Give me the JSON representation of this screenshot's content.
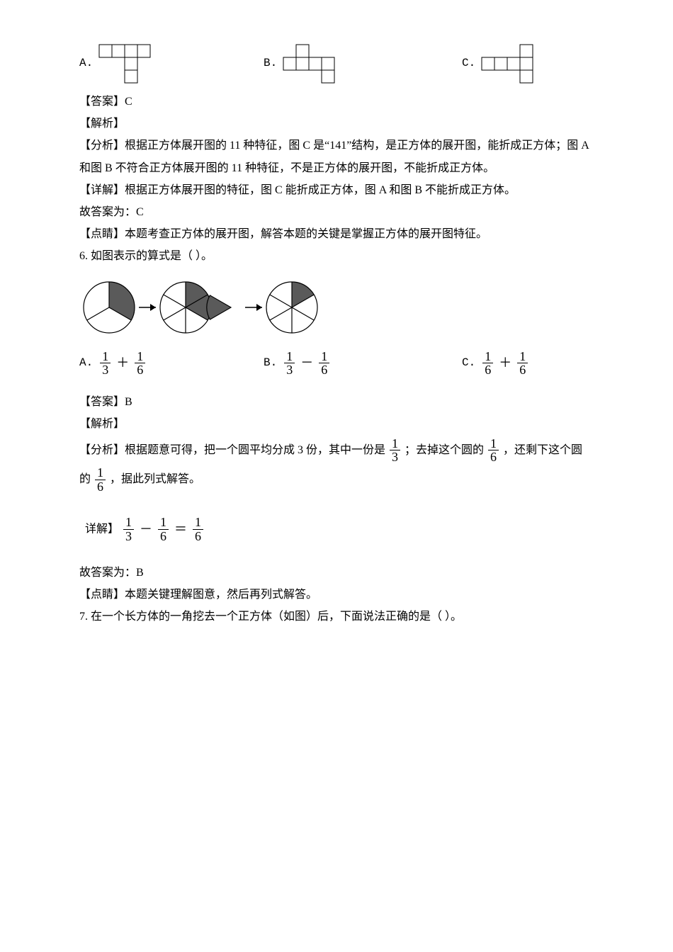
{
  "colors": {
    "text": "#000000",
    "bg": "#ffffff",
    "line": "#000000",
    "shade": "#5a5a5a"
  },
  "nets": {
    "cell": 18,
    "stroke": "#000000",
    "strokeWidth": 1,
    "A": {
      "squares": [
        [
          0,
          0
        ],
        [
          1,
          0
        ],
        [
          2,
          0
        ],
        [
          3,
          0
        ],
        [
          2,
          1
        ],
        [
          2,
          2
        ]
      ]
    },
    "B": {
      "squares": [
        [
          0,
          1
        ],
        [
          1,
          0
        ],
        [
          1,
          1
        ],
        [
          2,
          1
        ],
        [
          3,
          1
        ],
        [
          3,
          2
        ]
      ]
    },
    "C": {
      "squares": [
        [
          3,
          0
        ],
        [
          0,
          1
        ],
        [
          1,
          1
        ],
        [
          2,
          1
        ],
        [
          3,
          1
        ],
        [
          3,
          2
        ]
      ]
    }
  },
  "q5": {
    "optA": "A. ",
    "optB": "B. ",
    "optC": "C. ",
    "ansLabel": "【答案】",
    "ansVal": "C",
    "parseLabel": "【解析】",
    "analysisLabel": "【分析】",
    "analysisText": "根据正方体展开图的 11 种特征，图 C 是“141”结构，是正方体的展开图，能折成正方体；图 A 和图 B 不符合正方体展开图的 11 种特征，不是正方体的展开图，不能折成正方体。",
    "detailLabel": "【详解】",
    "detailText": "根据正方体展开图的特征，图 C 能折成正方体，图 A 和图 B 不能折成正方体。",
    "so": "故答案为：C",
    "dianjingLabel": "【点睛】",
    "dianjingText": "本题考查正方体的展开图，解答本题的关键是掌握正方体的展开图特征。"
  },
  "q6": {
    "stem": "6. 如图表示的算式是（    ）。",
    "circles": {
      "r": 36,
      "stroke": "#000000",
      "strokeWidth": 1.2,
      "shade": "#5a5a5a",
      "c1": {
        "segments": 3,
        "shaded": [
          0
        ]
      },
      "c2": {
        "segments": 6,
        "shaded": [
          0,
          1
        ],
        "highlightRemoved": 1
      },
      "c3": {
        "segments": 6,
        "shaded": [
          0
        ]
      }
    },
    "optA": "A. ",
    "optB": "B. ",
    "optC": "C. ",
    "fracA": {
      "a": {
        "n": "1",
        "d": "3"
      },
      "op": "＋",
      "b": {
        "n": "1",
        "d": "6"
      }
    },
    "fracB": {
      "a": {
        "n": "1",
        "d": "3"
      },
      "op": "－",
      "b": {
        "n": "1",
        "d": "6"
      }
    },
    "fracC": {
      "a": {
        "n": "1",
        "d": "6"
      },
      "op": "＋",
      "b": {
        "n": "1",
        "d": "6"
      }
    },
    "ansLabel": "【答案】",
    "ansVal": "B",
    "parseLabel": "【解析】",
    "analysisLabel": "【分析】",
    "analysisPre": "根据题意可得，把一个圆平均分成 3 份，其中一份是",
    "analysisMid1": "；去掉这个圆的",
    "analysisMid2": "，还剩下这个圆的",
    "analysisFrac1": {
      "n": "1",
      "d": "3"
    },
    "analysisFrac2": {
      "n": "1",
      "d": "6"
    },
    "analysisFrac3": {
      "n": "1",
      "d": "6"
    },
    "analysisTail": "，据此列式解答。",
    "detailLabel": "详解】",
    "detailFrac": {
      "a": {
        "n": "1",
        "d": "3"
      },
      "op1": "－",
      "b": {
        "n": "1",
        "d": "6"
      },
      "eq": "＝",
      "c": {
        "n": "1",
        "d": "6"
      }
    },
    "so": "故答案为：B",
    "dianjingLabel": "【点睛】",
    "dianjingText": "本题关键理解图意，然后再列式解答。"
  },
  "q7": {
    "stem": "7. 在一个长方体的一角挖去一个正方体（如图）后，下面说法正确的是（    ）。"
  }
}
